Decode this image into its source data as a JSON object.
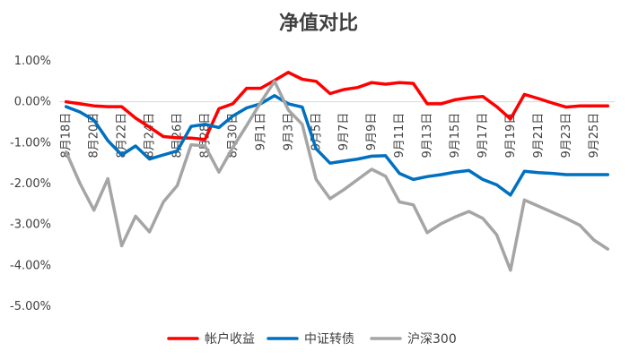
{
  "chart_data": {
    "type": "line",
    "title": "净值对比",
    "xlabel": "",
    "ylabel": "",
    "ylim": [
      -0.05,
      0.01
    ],
    "yticks": [
      0.01,
      0.0,
      -0.01,
      -0.02,
      -0.03,
      -0.04,
      -0.05
    ],
    "ytick_labels": [
      "1.00%",
      "0.00%",
      "-1.00%",
      "-2.00%",
      "-3.00%",
      "-4.00%",
      "-5.00%"
    ],
    "x": [
      "8月18日",
      "8月19日",
      "8月20日",
      "8月21日",
      "8月22日",
      "8月23日",
      "8月24日",
      "8月25日",
      "8月26日",
      "8月27日",
      "8月28日",
      "8月29日",
      "8月30日",
      "8月31日",
      "9月1日",
      "9月2日",
      "9月3日",
      "9月4日",
      "9月5日",
      "9月6日",
      "9月7日",
      "9月8日",
      "9月9日",
      "9月10日",
      "9月11日",
      "9月12日",
      "9月13日",
      "9月14日",
      "9月15日",
      "9月16日",
      "9月17日",
      "9月18日",
      "9月19日",
      "9月20日",
      "9月21日",
      "9月22日",
      "9月23日",
      "9月24日",
      "9月25日",
      "9月26日"
    ],
    "x_tick_labels": [
      "8月18日",
      "",
      "8月20日",
      "",
      "8月22日",
      "",
      "8月24日",
      "",
      "8月26日",
      "",
      "8月28日",
      "",
      "8月30日",
      "",
      "9月1日",
      "",
      "9月3日",
      "",
      "9月5日",
      "",
      "9月7日",
      "",
      "9月9日",
      "",
      "9月11日",
      "",
      "9月13日",
      "",
      "9月15日",
      "",
      "9月17日",
      "",
      "9月19日",
      "",
      "9月21日",
      "",
      "9月23日",
      "",
      "9月25日",
      ""
    ],
    "grid": false,
    "legend_position": "bottom",
    "series": [
      {
        "name": "帐户收益",
        "color": "#ff0000",
        "values": [
          0.0,
          -0.0005,
          -0.001,
          -0.0012,
          -0.0012,
          -0.004,
          -0.0062,
          -0.0085,
          -0.0088,
          -0.0089,
          -0.0092,
          -0.0017,
          -0.0005,
          0.0033,
          0.0033,
          0.0052,
          0.0072,
          0.0055,
          0.005,
          0.002,
          0.003,
          0.0035,
          0.0047,
          0.0043,
          0.0047,
          0.0045,
          -0.0005,
          -0.0005,
          0.0005,
          0.001,
          0.0013,
          -0.0012,
          -0.0042,
          0.0018,
          0.0008,
          -0.0003,
          -0.0013,
          -0.001,
          -0.001,
          -0.001
        ]
      },
      {
        "name": "中证转债",
        "color": "#0070c0",
        "values": [
          -0.0012,
          -0.0025,
          -0.0045,
          -0.0095,
          -0.013,
          -0.0108,
          -0.014,
          -0.013,
          -0.012,
          -0.006,
          -0.0055,
          -0.0063,
          -0.0035,
          -0.0015,
          -0.0005,
          0.0015,
          -0.0005,
          -0.0013,
          -0.0115,
          -0.015,
          -0.0145,
          -0.014,
          -0.0133,
          -0.0132,
          -0.0175,
          -0.019,
          -0.0183,
          -0.0178,
          -0.0172,
          -0.0168,
          -0.019,
          -0.0203,
          -0.0228,
          -0.017,
          -0.0173,
          -0.0175,
          -0.0178,
          -0.0178,
          -0.0178,
          -0.0178
        ]
      },
      {
        "name": "沪深300",
        "color": "#a5a5a5",
        "values": [
          -0.0123,
          -0.02,
          -0.0265,
          -0.0188,
          -0.0352,
          -0.028,
          -0.0318,
          -0.0245,
          -0.0205,
          -0.0105,
          -0.0108,
          -0.0172,
          -0.0112,
          -0.0058,
          -0.0002,
          0.005,
          -0.002,
          -0.0055,
          -0.019,
          -0.0237,
          -0.0215,
          -0.019,
          -0.0165,
          -0.0182,
          -0.0245,
          -0.0252,
          -0.032,
          -0.0298,
          -0.0282,
          -0.0268,
          -0.0285,
          -0.0325,
          -0.0412,
          -0.024,
          -0.0255,
          -0.027,
          -0.0285,
          -0.0302,
          -0.0338,
          -0.036
        ]
      }
    ]
  }
}
